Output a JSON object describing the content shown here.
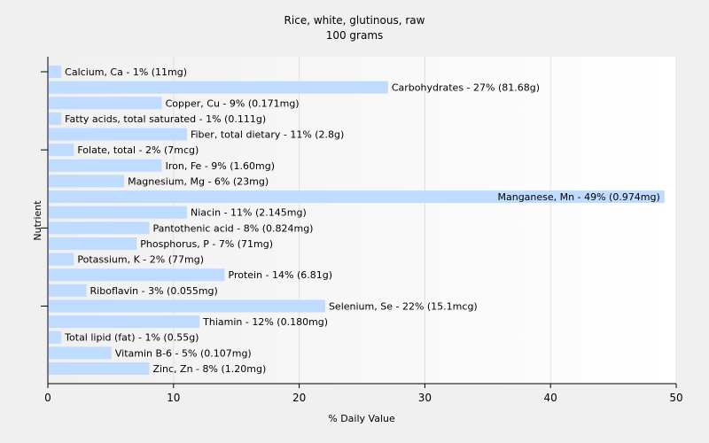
{
  "chart_data": {
    "type": "bar",
    "orientation": "horizontal",
    "title": "Rice, white, glutinous, raw",
    "subtitle": "100 grams",
    "xlabel": "% Daily Value",
    "ylabel": "Nutrient",
    "xlim": [
      0,
      50
    ],
    "xticks": [
      0,
      10,
      20,
      30,
      40,
      50
    ],
    "grid": true,
    "bar_color": "#bfdbff",
    "categories": [
      "Calcium, Ca",
      "Carbohydrates",
      "Copper, Cu",
      "Fatty acids, total saturated",
      "Fiber, total dietary",
      "Folate, total",
      "Iron, Fe",
      "Magnesium, Mg",
      "Manganese, Mn",
      "Niacin",
      "Pantothenic acid",
      "Phosphorus, P",
      "Potassium, K",
      "Protein",
      "Riboflavin",
      "Selenium, Se",
      "Thiamin",
      "Total lipid (fat)",
      "Vitamin B-6",
      "Zinc, Zn"
    ],
    "values": [
      1,
      27,
      9,
      1,
      11,
      2,
      9,
      6,
      49,
      11,
      8,
      7,
      2,
      14,
      3,
      22,
      12,
      1,
      5,
      8
    ],
    "labels": [
      "Calcium, Ca - 1% (11mg)",
      "Carbohydrates - 27% (81.68g)",
      "Copper, Cu - 9% (0.171mg)",
      "Fatty acids, total saturated - 1% (0.111g)",
      "Fiber, total dietary - 11% (2.8g)",
      "Folate, total - 2% (7mcg)",
      "Iron, Fe - 9% (1.60mg)",
      "Magnesium, Mg - 6% (23mg)",
      "Manganese, Mn - 49% (0.974mg)",
      "Niacin - 11% (2.145mg)",
      "Pantothenic acid - 8% (0.824mg)",
      "Phosphorus, P - 7% (71mg)",
      "Potassium, K - 2% (77mg)",
      "Protein - 14% (6.81g)",
      "Riboflavin - 3% (0.055mg)",
      "Selenium, Se - 22% (15.1mcg)",
      "Thiamin - 12% (0.180mg)",
      "Total lipid (fat) - 1% (0.55g)",
      "Vitamin B-6 - 5% (0.107mg)",
      "Zinc, Zn - 8% (1.20mg)"
    ]
  }
}
